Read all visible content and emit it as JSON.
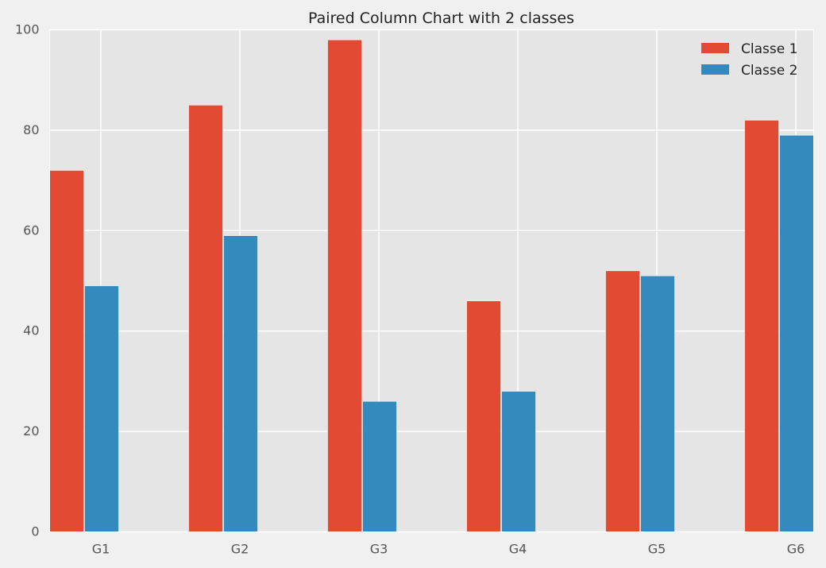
{
  "chart_data": {
    "type": "bar",
    "title": "Paired Column Chart with 2 classes",
    "xlabel": "",
    "ylabel": "",
    "categories": [
      "G1",
      "G2",
      "G3",
      "G4",
      "G5",
      "G6"
    ],
    "series": [
      {
        "name": "Classe 1",
        "values": [
          72,
          85,
          98,
          46,
          52,
          82
        ],
        "color": "#E24A33"
      },
      {
        "name": "Classe 2",
        "values": [
          49,
          59,
          26,
          28,
          51,
          79
        ],
        "color": "#348ABD"
      }
    ],
    "ylim": [
      0,
      100
    ],
    "yticks": [
      0,
      20,
      40,
      60,
      80,
      100
    ],
    "grid": true,
    "legend_position": "top-right",
    "colors": {
      "plot_background": "#E5E5E5",
      "page_background": "#F0F0F0",
      "grid": "#FFFFFF"
    }
  }
}
